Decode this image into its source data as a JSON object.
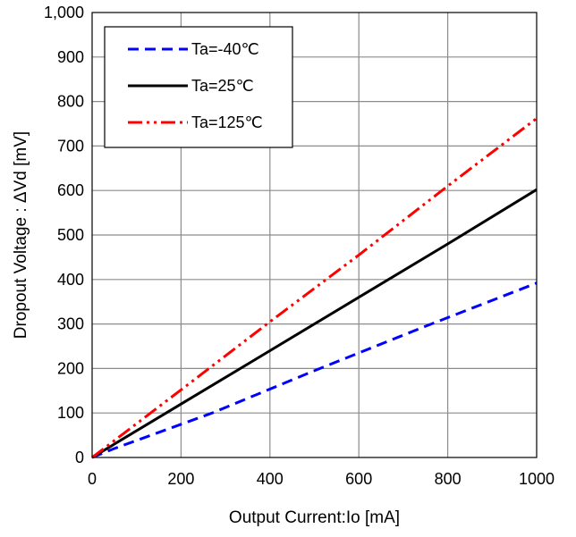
{
  "chart_data": {
    "type": "line",
    "xlabel": "Output Current:Io  [mA]",
    "ylabel": "Dropout Voltage : ΔVd [mV]",
    "xlim": [
      0,
      1000
    ],
    "ylim": [
      0,
      1000
    ],
    "x_ticks": [
      "0",
      "200",
      "400",
      "600",
      "800",
      "1000"
    ],
    "y_ticks": [
      "0",
      "100",
      "200",
      "300",
      "400",
      "500",
      "600",
      "700",
      "800",
      "900",
      "1,000"
    ],
    "grid": true,
    "legend_position": "top-left",
    "series": [
      {
        "name": "Ta=-40℃",
        "color": "#0000ff",
        "dash": "dashed",
        "x": [
          0,
          50,
          270,
          500,
          750,
          1000
        ],
        "y": [
          0,
          20,
          100,
          195,
          295,
          392
        ]
      },
      {
        "name": "Ta=25℃",
        "color": "#000000",
        "dash": "solid",
        "x": [
          0,
          200,
          400,
          600,
          800,
          1000
        ],
        "y": [
          0,
          120,
          240,
          360,
          480,
          602
        ]
      },
      {
        "name": "Ta=125℃",
        "color": "#ff0000",
        "dash": "dash-dot-dot",
        "x": [
          0,
          200,
          400,
          600,
          800,
          1000
        ],
        "y": [
          0,
          152,
          305,
          455,
          610,
          762
        ]
      }
    ]
  }
}
